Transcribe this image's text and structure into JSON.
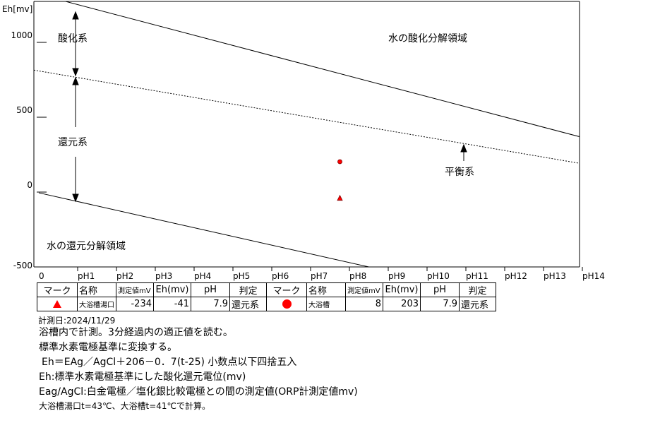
{
  "chart_data": {
    "type": "scatter",
    "ylabel": "Eh[mv]",
    "yticks": [
      "1000",
      "500",
      "0",
      "-500"
    ],
    "xticks": [
      "0",
      "pH1",
      "pH2",
      "pH3",
      "pH4",
      "pH5",
      "pH6",
      "pH7",
      "pH8",
      "pH9",
      "pH10",
      "pH11",
      "pH12",
      "pH13",
      "pH14"
    ],
    "xlim": [
      0,
      14
    ],
    "ylim": [
      -500,
      1300
    ],
    "lines": [
      {
        "style": "solid",
        "x": [
          0.55,
          14
        ],
        "y": [
          1283,
          365
        ]
      },
      {
        "style": "dashed",
        "x": [
          -0.2,
          14
        ],
        "y": [
          818,
          189
        ]
      },
      {
        "style": "solid",
        "x": [
          0,
          8.5
        ],
        "y": [
          -5,
          -500
        ]
      }
    ],
    "points": [
      {
        "marker": "triangle",
        "color": "#ff0000",
        "x": 7.9,
        "y": -41
      },
      {
        "marker": "circle",
        "color": "#ff0000",
        "x": 7.9,
        "y": 203
      }
    ],
    "annotations": {
      "oxidation": "酸化系",
      "reduction": "還元系",
      "equilibrium": "平衡系",
      "water_oxidation": "水の酸化分解領域",
      "water_reduction": "水の還元分解領域"
    }
  },
  "table": {
    "headers": [
      "マーク",
      "名称",
      "測定値mV",
      "Eh(mv)",
      "pH",
      "判定",
      "マーク",
      "名称",
      "測定値mV",
      "Eh(mv)",
      "pH",
      "判定"
    ],
    "row": {
      "name1": "大浴槽湯口",
      "measured1": "-234",
      "eh1": "-41",
      "ph1": "7.9",
      "judge1": "還元系",
      "name2": "大浴槽",
      "measured2": "8",
      "eh2": "203",
      "ph2": "7.9",
      "judge2": "還元系"
    }
  },
  "notes": {
    "date": "計測日:2024/11/29",
    "line1": "浴槽内で計測。3分経過内の適正値を読む。",
    "line2": "標準水素電極基準に変換する。",
    "line3": "Eh＝EAg／AgCl＋206－0．7(t-25)  小数点以下四捨五入",
    "line4": "Eh:標準水素電極基準にした酸化還元電位(mv)",
    "line5": "Eag/AgCl:白金電極／塩化銀比較電極との間の測定値(ORP計測定値mv)",
    "line6": "大浴槽湯口t=43℃、大浴槽t=41℃で計算。"
  }
}
